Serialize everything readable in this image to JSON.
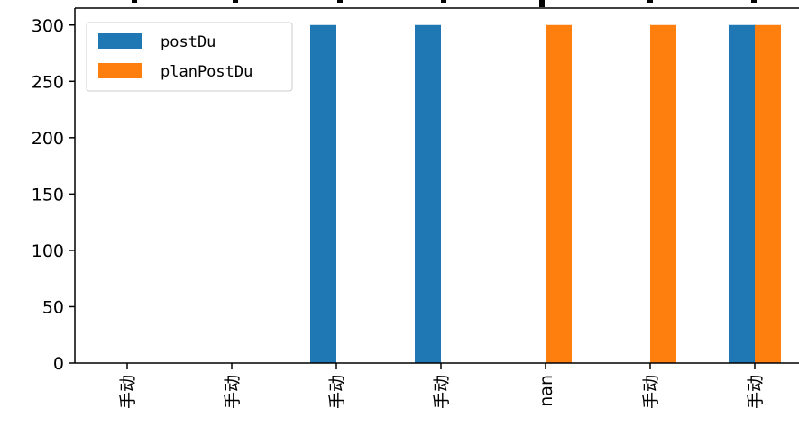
{
  "chart_data": {
    "type": "bar",
    "categories": [
      "手动",
      "手动",
      "手动",
      "手动",
      "nan",
      "手动",
      "手动"
    ],
    "series": [
      {
        "name": "postDu",
        "color": "#1f77b4",
        "values": [
          0,
          0,
          300,
          300,
          0,
          0,
          300
        ]
      },
      {
        "name": "planPostDu",
        "color": "#ff7f0e",
        "values": [
          0,
          0,
          0,
          0,
          300,
          300,
          300
        ]
      }
    ],
    "yticks": [
      0,
      50,
      100,
      150,
      200,
      250,
      300
    ],
    "ylim": [
      0,
      315
    ],
    "legend": "top-left",
    "grid": false
  }
}
